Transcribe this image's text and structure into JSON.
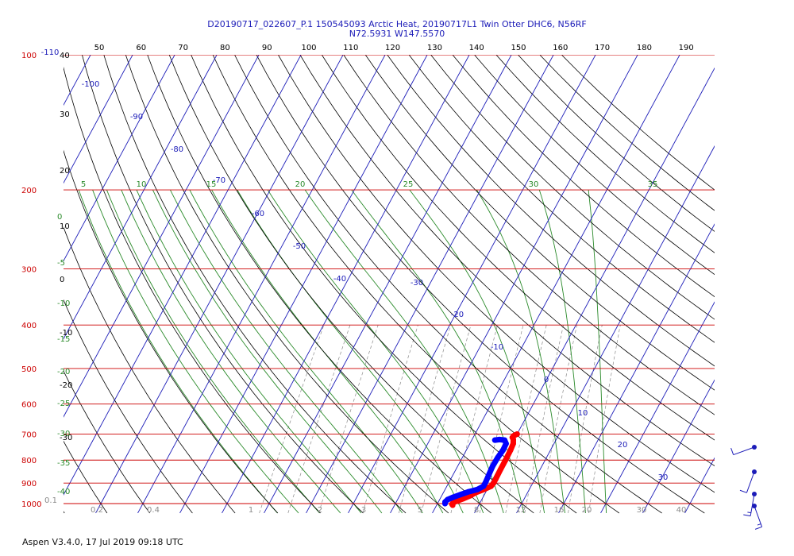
{
  "title": {
    "line1": "D20190717_022607_P.1 150545093 Arctic Heat, 20190717L1 Twin Otter DHC6, N56RF",
    "line2": "N72.5931 W147.5570"
  },
  "footer": "Aspen V3.4.0, 17 Jul 2019  09:18 UTC",
  "colors": {
    "isobar": "#cc0000",
    "isotherm": "#1c1cb8",
    "dry_adiabat": "#000000",
    "moist_adiabat": "#2a8a2a",
    "mixing_ratio": "#8a8a8a",
    "temperature_trace": "#ff0000",
    "dewpoint_trace": "#0000ff",
    "wind_barb": "#1c1cb8"
  },
  "chart_data": {
    "type": "line",
    "chart_kind": "skew-T log-P thermodynamic diagram",
    "y_scale": "log",
    "y_axis": {
      "ticks": [
        "100",
        "200",
        "300",
        "400",
        "500",
        "600",
        "700",
        "800",
        "900",
        "1000"
      ],
      "range": [
        100,
        1000
      ]
    },
    "top_axis_ticks": [
      "50",
      "60",
      "70",
      "80",
      "90",
      "100",
      "110",
      "120",
      "130",
      "140",
      "150",
      "160",
      "170",
      "180",
      "190"
    ],
    "isotherm_labels": [
      {
        "t": -110,
        "label": "-110"
      },
      {
        "t": -100,
        "label": "-100"
      },
      {
        "t": -90,
        "label": "-90"
      },
      {
        "t": -80,
        "label": "-80"
      },
      {
        "t": -70,
        "label": "-70"
      },
      {
        "t": -60,
        "label": "-60"
      },
      {
        "t": -50,
        "label": "-50"
      },
      {
        "t": -40,
        "label": "-40"
      },
      {
        "t": -30,
        "label": "-30"
      },
      {
        "t": -20,
        "label": "-20"
      },
      {
        "t": -10,
        "label": "-10"
      },
      {
        "t": 0,
        "label": "0"
      },
      {
        "t": 10,
        "label": "10"
      },
      {
        "t": 20,
        "label": "20"
      },
      {
        "t": 30,
        "label": "30"
      }
    ],
    "left_black_labels": [
      "40",
      "30",
      "20",
      "10",
      "0",
      "-10",
      "-20",
      "-30"
    ],
    "moist_adiabat_top_labels": [
      "5",
      "10",
      "15",
      "20",
      "25",
      "30",
      "35"
    ],
    "moist_adiabat_left_labels": [
      "0",
      "-5",
      "-10",
      "-15",
      "-20",
      "-25",
      "-30",
      "-35",
      "-40"
    ],
    "mixing_ratio_labels": [
      {
        "w": 0.1,
        "label": "0.1"
      },
      {
        "w": 0.2,
        "label": "0.2"
      },
      {
        "w": 0.4,
        "label": "0.4"
      },
      {
        "w": 1,
        "label": "1"
      },
      {
        "w": 2,
        "label": "2"
      },
      {
        "w": 3,
        "label": "3"
      },
      {
        "w": 5,
        "label": "5"
      },
      {
        "w": 8,
        "label": "8"
      },
      {
        "w": 12,
        "label": "12"
      },
      {
        "w": 16,
        "label": "16"
      },
      {
        "w": 20,
        "label": "20"
      },
      {
        "w": 30,
        "label": "30"
      },
      {
        "w": 40,
        "label": "40"
      }
    ],
    "series": [
      {
        "kind": "temperature",
        "points": [
          {
            "p": 700,
            "t": 10.0
          },
          {
            "p": 705,
            "t": 9.5
          },
          {
            "p": 712,
            "t": 9.3
          },
          {
            "p": 720,
            "t": 9.8
          },
          {
            "p": 735,
            "t": 10.3
          },
          {
            "p": 760,
            "t": 10.5
          },
          {
            "p": 800,
            "t": 10.6
          },
          {
            "p": 840,
            "t": 10.6
          },
          {
            "p": 880,
            "t": 10.7
          },
          {
            "p": 900,
            "t": 10.7
          },
          {
            "p": 915,
            "t": 10.5
          },
          {
            "p": 930,
            "t": 9.2
          },
          {
            "p": 945,
            "t": 7.7
          },
          {
            "p": 960,
            "t": 6.8
          },
          {
            "p": 975,
            "t": 5.5
          },
          {
            "p": 988,
            "t": 4.2
          },
          {
            "p": 996,
            "t": 3.6
          },
          {
            "p": 1003,
            "t": 3.5
          },
          {
            "p": 1008,
            "t": 3.8
          }
        ]
      },
      {
        "kind": "dewpoint",
        "points": [
          {
            "p": 722,
            "t": 5.5
          },
          {
            "p": 720,
            "t": 6.5
          },
          {
            "p": 722,
            "t": 7.8
          },
          {
            "p": 735,
            "t": 8.6
          },
          {
            "p": 760,
            "t": 8.7
          },
          {
            "p": 790,
            "t": 8.4
          },
          {
            "p": 825,
            "t": 8.3
          },
          {
            "p": 860,
            "t": 8.5
          },
          {
            "p": 895,
            "t": 8.7
          },
          {
            "p": 915,
            "t": 8.7
          },
          {
            "p": 930,
            "t": 7.7
          },
          {
            "p": 942,
            "t": 5.8
          },
          {
            "p": 955,
            "t": 4.3
          },
          {
            "p": 968,
            "t": 2.9
          },
          {
            "p": 980,
            "t": 1.9
          },
          {
            "p": 992,
            "t": 1.6
          },
          {
            "p": 1000,
            "t": 1.8
          }
        ]
      }
    ],
    "wind_barbs": [
      {
        "p": 720,
        "dir": 250,
        "speed_kt": 10
      },
      {
        "p": 830,
        "dir": 200,
        "speed_kt": 10
      },
      {
        "p": 915,
        "dir": 190,
        "speed_kt": 15
      },
      {
        "p": 980,
        "dir": 160,
        "speed_kt": 15
      }
    ]
  }
}
